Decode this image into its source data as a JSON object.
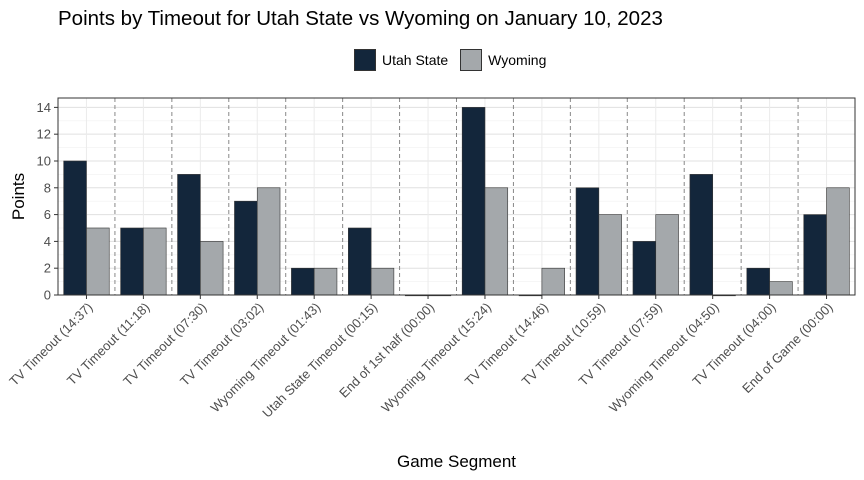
{
  "chart_data": {
    "type": "bar",
    "title": "Points by Timeout for Utah State vs Wyoming on January 10, 2023",
    "xlabel": "Game Segment",
    "ylabel": "Points",
    "ylim": [
      0,
      14.7
    ],
    "yticks": [
      0,
      2,
      4,
      6,
      8,
      10,
      12,
      14
    ],
    "grid": true,
    "legend_position": "top",
    "categories": [
      "TV Timeout (14:37)",
      "TV Timeout (11:18)",
      "TV Timeout (07:30)",
      "TV Timeout (03:02)",
      "Wyoming  Timeout (01:43)",
      "Utah State  Timeout (00:15)",
      "End of 1st half (00:00)",
      "Wyoming  Timeout (15:24)",
      "TV Timeout (14:46)",
      "TV Timeout (10:59)",
      "TV Timeout (07:59)",
      "Wyoming  Timeout (04:50)",
      "TV Timeout (04:00)",
      "End of Game (00:00)"
    ],
    "series": [
      {
        "name": "Utah State",
        "color": "#13263b",
        "values": [
          10,
          5,
          9,
          7,
          2,
          5,
          0,
          14,
          0,
          8,
          4,
          9,
          2,
          6
        ]
      },
      {
        "name": "Wyoming",
        "color": "#a4a8ab",
        "values": [
          5,
          5,
          4,
          8,
          2,
          2,
          0,
          8,
          2,
          6,
          6,
          0,
          1,
          8
        ]
      }
    ]
  }
}
